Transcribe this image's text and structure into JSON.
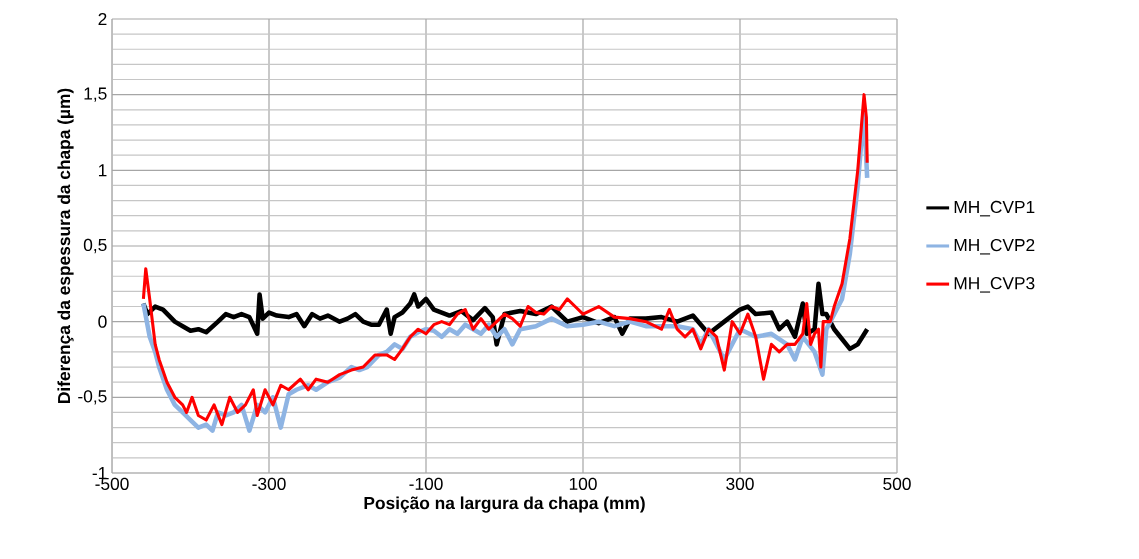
{
  "chart_data": {
    "type": "line",
    "xlabel": "Posição na largura da chapa (mm)",
    "ylabel": "Diferença da espessura da chapa (µm)",
    "xlim": [
      -500,
      500
    ],
    "xticks": [
      -500,
      -300,
      -100,
      100,
      300,
      500
    ],
    "ylim": [
      -1,
      2
    ],
    "yticks": [
      -1,
      {
        "value": -0.5,
        "label": "-0,5"
      },
      0,
      {
        "value": 0.5,
        "label": "0,5"
      },
      1,
      {
        "value": 1.5,
        "label": "1,5"
      },
      2
    ],
    "grid": true,
    "legend": "right",
    "marker": "none",
    "line_style": "solid",
    "series": [
      {
        "name": "MH_CVP1",
        "color": "#000000",
        "x": [
          -460,
          -455,
          -445,
          -435,
          -420,
          -410,
          -400,
          -390,
          -380,
          -365,
          -355,
          -345,
          -335,
          -325,
          -315,
          -312,
          -308,
          -300,
          -290,
          -275,
          -265,
          -255,
          -245,
          -235,
          -225,
          -210,
          -200,
          -190,
          -180,
          -170,
          -160,
          -150,
          -145,
          -140,
          -130,
          -120,
          -115,
          -110,
          -100,
          -90,
          -80,
          -70,
          -55,
          -40,
          -25,
          -15,
          -10,
          0,
          20,
          40,
          60,
          80,
          100,
          120,
          140,
          150,
          160,
          180,
          200,
          220,
          240,
          260,
          280,
          300,
          310,
          320,
          340,
          350,
          360,
          370,
          380,
          385,
          395,
          400,
          405,
          410,
          420,
          440,
          450,
          462
        ],
        "values": [
          0.12,
          0.05,
          0.1,
          0.08,
          0.0,
          -0.03,
          -0.06,
          -0.05,
          -0.07,
          0.0,
          0.05,
          0.03,
          0.05,
          0.03,
          -0.08,
          0.18,
          0.02,
          0.06,
          0.04,
          0.03,
          0.05,
          -0.03,
          0.05,
          0.02,
          0.04,
          0.0,
          0.02,
          0.05,
          0.0,
          -0.02,
          -0.02,
          0.08,
          -0.08,
          0.03,
          0.06,
          0.12,
          0.18,
          0.1,
          0.15,
          0.08,
          0.06,
          0.04,
          0.07,
          0.01,
          0.09,
          0.03,
          -0.15,
          0.05,
          0.07,
          0.05,
          0.1,
          0.0,
          0.03,
          -0.01,
          0.03,
          -0.08,
          0.02,
          0.02,
          0.03,
          0.0,
          0.04,
          -0.08,
          0.0,
          0.08,
          0.1,
          0.05,
          0.06,
          -0.05,
          0.0,
          -0.1,
          0.12,
          -0.08,
          -0.05,
          0.25,
          0.05,
          0.05,
          -0.05,
          -0.18,
          -0.15,
          -0.05
        ]
      },
      {
        "name": "MH_CVP2",
        "color": "#8eb4e3",
        "x": [
          -460,
          -452,
          -445,
          -440,
          -430,
          -420,
          -410,
          -400,
          -390,
          -380,
          -372,
          -365,
          -355,
          -345,
          -335,
          -325,
          -315,
          -305,
          -295,
          -285,
          -275,
          -265,
          -250,
          -240,
          -225,
          -210,
          -195,
          -185,
          -175,
          -160,
          -150,
          -140,
          -130,
          -120,
          -110,
          -100,
          -90,
          -80,
          -70,
          -60,
          -50,
          -40,
          -30,
          -20,
          -10,
          0,
          10,
          20,
          40,
          60,
          80,
          100,
          120,
          140,
          160,
          180,
          200,
          220,
          240,
          250,
          260,
          280,
          300,
          320,
          340,
          360,
          370,
          380,
          395,
          405,
          410,
          420,
          430,
          440,
          450,
          458,
          462
        ],
        "values": [
          0.12,
          -0.1,
          -0.2,
          -0.3,
          -0.45,
          -0.55,
          -0.6,
          -0.65,
          -0.7,
          -0.68,
          -0.72,
          -0.6,
          -0.62,
          -0.6,
          -0.55,
          -0.72,
          -0.55,
          -0.6,
          -0.5,
          -0.7,
          -0.48,
          -0.45,
          -0.42,
          -0.45,
          -0.4,
          -0.37,
          -0.3,
          -0.32,
          -0.3,
          -0.22,
          -0.2,
          -0.15,
          -0.18,
          -0.1,
          -0.07,
          -0.05,
          -0.06,
          -0.1,
          -0.05,
          -0.08,
          -0.02,
          -0.05,
          -0.08,
          -0.02,
          -0.1,
          -0.05,
          -0.15,
          -0.05,
          -0.03,
          0.02,
          -0.03,
          -0.02,
          0.0,
          -0.03,
          0.0,
          -0.03,
          -0.03,
          -0.03,
          -0.05,
          -0.15,
          -0.05,
          -0.25,
          -0.05,
          -0.1,
          -0.08,
          -0.15,
          -0.25,
          -0.1,
          -0.2,
          -0.35,
          -0.05,
          0.05,
          0.15,
          0.45,
          0.9,
          1.4,
          0.95
        ]
      },
      {
        "name": "MH_CVP3",
        "color": "#ff0000",
        "x": [
          -460,
          -457,
          -452,
          -445,
          -440,
          -430,
          -420,
          -410,
          -405,
          -398,
          -390,
          -380,
          -370,
          -360,
          -350,
          -340,
          -330,
          -320,
          -315,
          -305,
          -295,
          -285,
          -275,
          -260,
          -250,
          -240,
          -225,
          -210,
          -195,
          -180,
          -165,
          -150,
          -140,
          -130,
          -120,
          -110,
          -100,
          -90,
          -80,
          -70,
          -60,
          -50,
          -40,
          -30,
          -20,
          -10,
          0,
          10,
          20,
          30,
          40,
          50,
          60,
          70,
          80,
          90,
          100,
          120,
          140,
          160,
          180,
          200,
          210,
          220,
          230,
          240,
          250,
          260,
          270,
          280,
          290,
          300,
          310,
          320,
          330,
          340,
          350,
          360,
          370,
          380,
          385,
          390,
          395,
          400,
          403,
          406,
          415,
          420,
          430,
          440,
          450,
          458,
          461,
          462
        ],
        "values": [
          0.15,
          0.35,
          0.15,
          -0.15,
          -0.25,
          -0.4,
          -0.5,
          -0.55,
          -0.6,
          -0.5,
          -0.62,
          -0.65,
          -0.55,
          -0.68,
          -0.5,
          -0.6,
          -0.55,
          -0.45,
          -0.62,
          -0.45,
          -0.55,
          -0.42,
          -0.45,
          -0.38,
          -0.45,
          -0.38,
          -0.4,
          -0.35,
          -0.32,
          -0.3,
          -0.22,
          -0.22,
          -0.25,
          -0.18,
          -0.1,
          -0.05,
          -0.08,
          -0.02,
          0.0,
          -0.02,
          0.05,
          0.08,
          -0.05,
          0.02,
          -0.05,
          0.0,
          0.05,
          0.02,
          -0.03,
          0.1,
          0.06,
          0.05,
          0.1,
          0.08,
          0.15,
          0.1,
          0.05,
          0.1,
          0.03,
          0.02,
          0.0,
          -0.05,
          0.08,
          -0.05,
          -0.1,
          -0.05,
          -0.18,
          -0.05,
          -0.1,
          -0.32,
          0.0,
          -0.08,
          0.05,
          -0.1,
          -0.38,
          -0.15,
          -0.2,
          -0.15,
          -0.15,
          -0.08,
          0.12,
          -0.15,
          -0.08,
          -0.05,
          -0.3,
          0.0,
          0.0,
          0.1,
          0.25,
          0.55,
          1.0,
          1.5,
          1.35,
          1.05
        ]
      }
    ]
  }
}
